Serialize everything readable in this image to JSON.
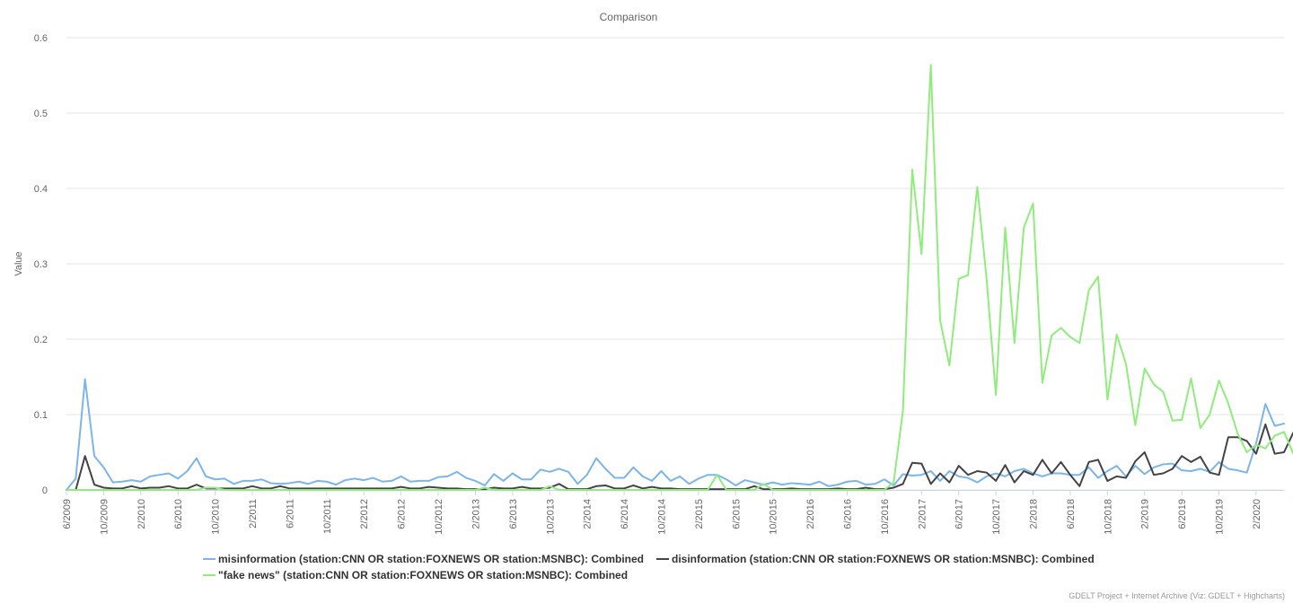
{
  "chart_data": {
    "type": "line",
    "title": "Comparison",
    "ylabel": "Value",
    "xlabel": "",
    "ylim": [
      0,
      0.6
    ],
    "yticks": [
      "0",
      "0.1",
      "0.2",
      "0.3",
      "0.4",
      "0.5",
      "0.6"
    ],
    "x_start": "6/2009",
    "x_tick_labels": [
      "6/2009",
      "10/2009",
      "2/2010",
      "6/2010",
      "10/2010",
      "2/2011",
      "6/2011",
      "10/2011",
      "2/2012",
      "6/2012",
      "10/2012",
      "2/2013",
      "6/2013",
      "10/2013",
      "2/2014",
      "6/2014",
      "10/2014",
      "2/2015",
      "6/2015",
      "10/2015",
      "2/2016",
      "6/2016",
      "10/2016",
      "2/2017",
      "6/2017",
      "10/2017",
      "2/2018",
      "6/2018",
      "10/2018",
      "2/2019",
      "6/2019",
      "10/2019",
      "2/2020"
    ],
    "grid": true,
    "legend_position": "bottom-center",
    "series": [
      {
        "name": "misinformation (station:CNN OR station:FOXNEWS OR station:MSNBC): Combined",
        "color": "#7cb5ec",
        "values": [
          0,
          0.015,
          0.147,
          0.045,
          0.03,
          0.01,
          0.011,
          0.013,
          0.011,
          0.018,
          0.02,
          0.022,
          0.015,
          0.025,
          0.042,
          0.018,
          0.014,
          0.015,
          0.008,
          0.012,
          0.012,
          0.014,
          0.009,
          0.008,
          0.009,
          0.011,
          0.008,
          0.012,
          0.011,
          0.007,
          0.013,
          0.015,
          0.013,
          0.016,
          0.011,
          0.012,
          0.018,
          0.011,
          0.012,
          0.012,
          0.017,
          0.018,
          0.024,
          0.016,
          0.012,
          0.006,
          0.021,
          0.012,
          0.022,
          0.014,
          0.014,
          0.027,
          0.024,
          0.028,
          0.024,
          0.008,
          0.02,
          0.042,
          0.028,
          0.016,
          0.016,
          0.03,
          0.018,
          0.012,
          0.025,
          0.012,
          0.018,
          0.008,
          0.015,
          0.02,
          0.02,
          0.014,
          0.006,
          0.013,
          0.01,
          0.007,
          0.01,
          0.007,
          0.009,
          0.008,
          0.007,
          0.011,
          0.005,
          0.007,
          0.011,
          0.012,
          0.007,
          0.008,
          0.014,
          0.006,
          0.021,
          0.019,
          0.02,
          0.025,
          0.012,
          0.025,
          0.018,
          0.016,
          0.01,
          0.018,
          0.022,
          0.018,
          0.025,
          0.028,
          0.022,
          0.018,
          0.022,
          0.022,
          0.02,
          0.02,
          0.03,
          0.016,
          0.025,
          0.032,
          0.018,
          0.032,
          0.021,
          0.03,
          0.034,
          0.035,
          0.026,
          0.025,
          0.028,
          0.024,
          0.037,
          0.028,
          0.026,
          0.023,
          0.062,
          0.114,
          0.085,
          0.088
        ]
      },
      {
        "name": "disinformation (station:CNN OR station:FOXNEWS OR station:MSNBC): Combined",
        "color": "#434348",
        "values": [
          0,
          0,
          0.045,
          0.007,
          0.003,
          0.002,
          0.002,
          0.005,
          0.002,
          0.003,
          0.003,
          0.005,
          0.002,
          0.002,
          0.007,
          0.002,
          0.002,
          0.002,
          0.002,
          0.002,
          0.005,
          0.002,
          0.002,
          0.005,
          0.002,
          0.002,
          0.002,
          0.002,
          0.002,
          0.002,
          0.002,
          0.002,
          0.002,
          0.002,
          0.002,
          0.002,
          0.004,
          0.002,
          0.002,
          0.004,
          0.003,
          0.002,
          0.002,
          0.001,
          0.001,
          0.001,
          0.003,
          0.002,
          0.002,
          0.004,
          0.002,
          0.002,
          0.003,
          0.008,
          0.001,
          0.001,
          0.001,
          0.005,
          0.006,
          0.002,
          0.002,
          0.006,
          0.002,
          0.004,
          0.002,
          0.002,
          0.001,
          0.001,
          0.001,
          0.001,
          0.001,
          0.001,
          0.001,
          0.001,
          0.005,
          0.001,
          0.001,
          0.001,
          0.002,
          0.001,
          0.001,
          0.001,
          0.001,
          0.002,
          0.001,
          0.001,
          0.003,
          0.001,
          0.001,
          0.003,
          0.008,
          0.036,
          0.035,
          0.008,
          0.022,
          0.01,
          0.032,
          0.02,
          0.025,
          0.023,
          0.012,
          0.033,
          0.01,
          0.025,
          0.02,
          0.04,
          0.022,
          0.037,
          0.02,
          0.005,
          0.037,
          0.04,
          0.012,
          0.018,
          0.016,
          0.038,
          0.05,
          0.02,
          0.022,
          0.028,
          0.045,
          0.037,
          0.044,
          0.023,
          0.02,
          0.07,
          0.07,
          0.065,
          0.048,
          0.087,
          0.048,
          0.05,
          0.076
        ]
      },
      {
        "name": "\"fake news\" (station:CNN OR station:FOXNEWS OR station:MSNBC): Combined",
        "color": "#90ed7d",
        "values": [
          0,
          0,
          0,
          0,
          0,
          0,
          0,
          0,
          0,
          0,
          0,
          0,
          0,
          0,
          0,
          0.003,
          0.003,
          0,
          0,
          0,
          0,
          0,
          0,
          0,
          0,
          0,
          0,
          0,
          0,
          0,
          0,
          0,
          0,
          0,
          0,
          0,
          0,
          0,
          0,
          0,
          0,
          0,
          0,
          0,
          0,
          0.003,
          0,
          0,
          0,
          0,
          0,
          0,
          0.005,
          0,
          0,
          0,
          0,
          0,
          0,
          0,
          0,
          0,
          0,
          0,
          0,
          0,
          0,
          0,
          0,
          0,
          0.02,
          0,
          0,
          0,
          0,
          0.008,
          0,
          0,
          0,
          0,
          0,
          0,
          0,
          0,
          0,
          0,
          0,
          0,
          0,
          0.01,
          0.105,
          0.425,
          0.313,
          0.564,
          0.225,
          0.165,
          0.28,
          0.285,
          0.402,
          0.28,
          0.126,
          0.348,
          0.195,
          0.348,
          0.38,
          0.142,
          0.205,
          0.215,
          0.203,
          0.195,
          0.265,
          0.283,
          0.12,
          0.206,
          0.167,
          0.086,
          0.161,
          0.14,
          0.13,
          0.092,
          0.093,
          0.148,
          0.082,
          0.1,
          0.145,
          0.115,
          0.075,
          0.05,
          0.06,
          0.055,
          0.072,
          0.077,
          0.048
        ]
      }
    ]
  },
  "credit": "GDELT Project + Internet Archive (Viz: GDELT + Highcharts)"
}
